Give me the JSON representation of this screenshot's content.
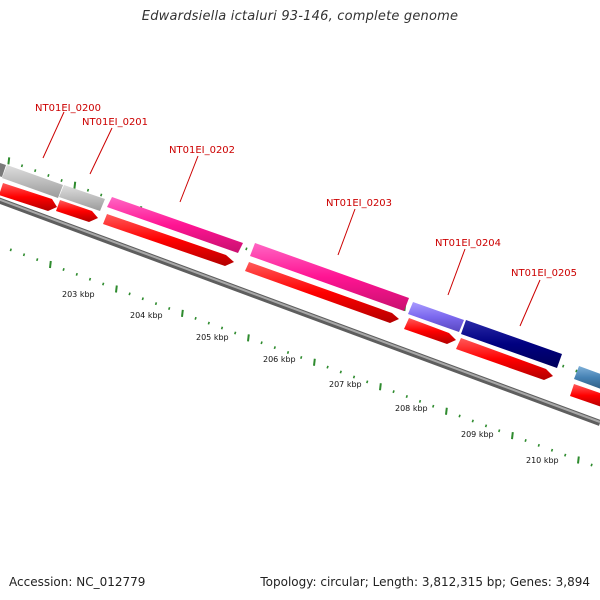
{
  "title": "Edwardsiella ictaluri 93-146, complete genome",
  "footer": {
    "accession": "Accession: NC_012779",
    "summary": "Topology: circular; Length: 3,812,315 bp; Genes: 3,894"
  },
  "colors": {
    "gene_label": "#cc0000",
    "backbone": "#7a7a7a",
    "tick": "#2e8b2e",
    "reverse_strand_gene": "#ff0000",
    "gene_pink": "#ff1493",
    "gene_gray": "#bdbdbd",
    "gene_purple": "#7b68ee",
    "gene_navy": "#000080",
    "gene_steelblue": "#4682b4"
  },
  "genes": [
    {
      "name": "NT01EI_0200",
      "color": "#bdbdbd"
    },
    {
      "name": "NT01EI_0201",
      "color": "#bdbdbd"
    },
    {
      "name": "NT01EI_0202",
      "color": "#ff1493"
    },
    {
      "name": "NT01EI_0203",
      "color": "#ff1493"
    },
    {
      "name": "NT01EI_0204",
      "color": "#7b68ee"
    },
    {
      "name": "NT01EI_0205",
      "color": "#000080"
    }
  ],
  "ruler": {
    "unit": "kbp",
    "labels": [
      "203 kbp",
      "204 kbp",
      "205 kbp",
      "206 kbp",
      "207 kbp",
      "208 kbp",
      "209 kbp",
      "210 kbp"
    ]
  }
}
